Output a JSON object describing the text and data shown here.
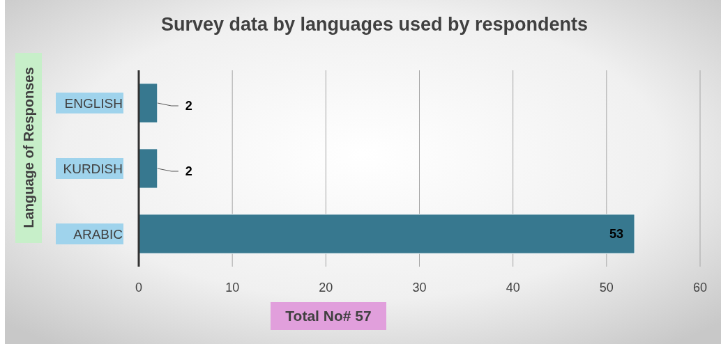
{
  "chart_data": {
    "type": "bar",
    "orientation": "horizontal",
    "title": "Survey data by languages used by respondents",
    "ylabel": "Language of Responses",
    "xlabel": "Total No# 57",
    "categories": [
      "ENGLISH",
      "KURDISH",
      "ARABIC"
    ],
    "values": [
      2,
      2,
      53
    ],
    "color": "#37788f",
    "xlim": [
      0,
      60
    ],
    "xticks": [
      0,
      10,
      20,
      30,
      40,
      50,
      60
    ],
    "grid": "x",
    "data_labels": true
  }
}
